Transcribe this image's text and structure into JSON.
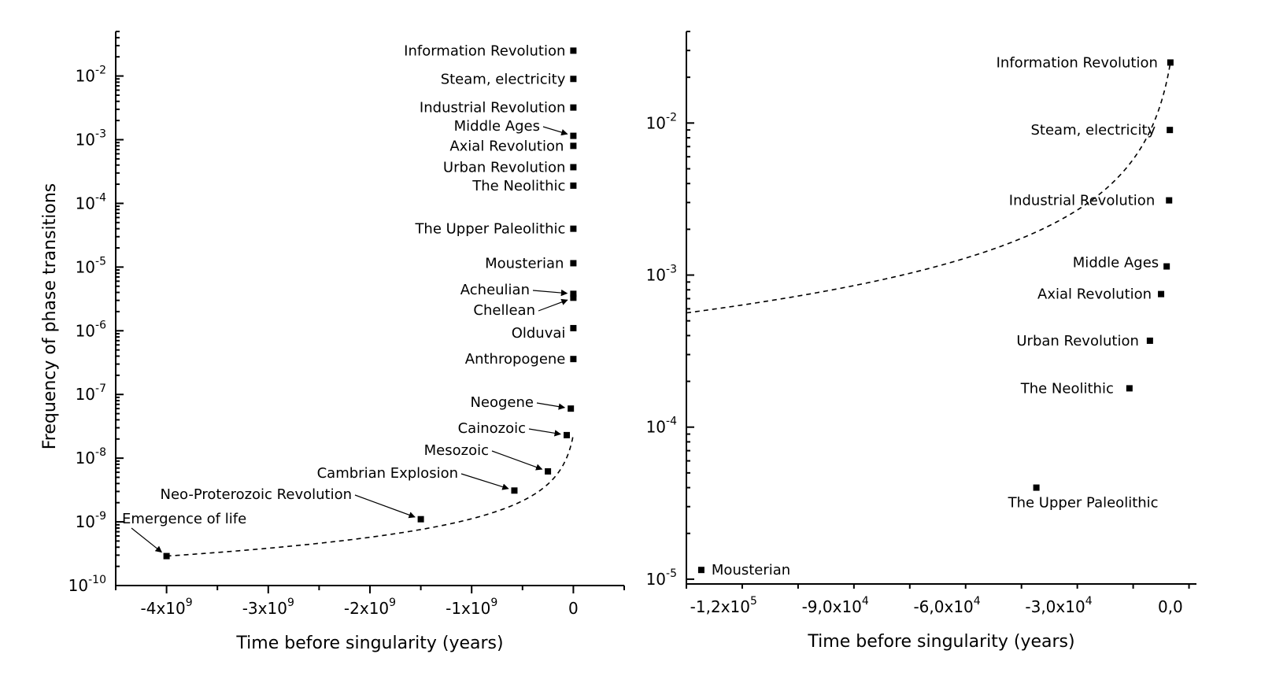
{
  "chart_data": [
    {
      "type": "scatter",
      "xlabel": "Time before singularity (years)",
      "ylabel": "Frequency of phase transitions",
      "xlim": [
        -4500000000,
        500000000
      ],
      "ylim": [
        1e-10,
        0.05
      ],
      "yscale": "log",
      "xticks": [
        {
          "v": -4000000000,
          "label": "-4x10",
          "exp": "9"
        },
        {
          "v": -3000000000,
          "label": "-3x10",
          "exp": "9"
        },
        {
          "v": -2000000000,
          "label": "-2x10",
          "exp": "9"
        },
        {
          "v": -1000000000,
          "label": "-1x10",
          "exp": "9"
        },
        {
          "v": 0,
          "label": "0",
          "exp": ""
        }
      ],
      "yticks": [
        {
          "v": 1e-10,
          "label": "10",
          "exp": "-10"
        },
        {
          "v": 1e-09,
          "label": "10",
          "exp": "-9"
        },
        {
          "v": 1e-08,
          "label": "10",
          "exp": "-8"
        },
        {
          "v": 1e-07,
          "label": "10",
          "exp": "-7"
        },
        {
          "v": 1e-06,
          "label": "10",
          "exp": "-6"
        },
        {
          "v": 1e-05,
          "label": "10",
          "exp": "-5"
        },
        {
          "v": 0.0001,
          "label": "10",
          "exp": "-4"
        },
        {
          "v": 0.001,
          "label": "10",
          "exp": "-3"
        },
        {
          "v": 0.01,
          "label": "10",
          "exp": "-2"
        }
      ],
      "points": [
        {
          "name": "Information Revolution",
          "x": 0,
          "y": 0.025
        },
        {
          "name": "Steam, electricity",
          "x": 0,
          "y": 0.009
        },
        {
          "name": "Industrial Revolution",
          "x": 0,
          "y": 0.0032
        },
        {
          "name": "Middle Ages",
          "x": 0,
          "y": 0.00115
        },
        {
          "name": "Axial Revolution",
          "x": 0,
          "y": 0.0008
        },
        {
          "name": "Urban Revolution",
          "x": 0,
          "y": 0.00037
        },
        {
          "name": "The Neolithic",
          "x": 0,
          "y": 0.00019
        },
        {
          "name": "The Upper Paleolithic",
          "x": 0,
          "y": 4e-05
        },
        {
          "name": "Mousterian",
          "x": 0,
          "y": 1.15e-05
        },
        {
          "name": "Acheulian",
          "x": 0,
          "y": 3.8e-06
        },
        {
          "name": "Chellean",
          "x": 0,
          "y": 3.3e-06
        },
        {
          "name": "Olduvai",
          "x": 0,
          "y": 1.1e-06
        },
        {
          "name": "Anthropogene",
          "x": 0,
          "y": 3.6e-07
        },
        {
          "name": "Neogene",
          "x": -25000000,
          "y": 6e-08
        },
        {
          "name": "Cainozoic",
          "x": -65000000,
          "y": 2.3e-08
        },
        {
          "name": "Mesozoic",
          "x": -250000000,
          "y": 6.2e-09
        },
        {
          "name": "Cambrian Explosion",
          "x": -580000000,
          "y": 3.1e-09
        },
        {
          "name": "Neo-Proterozoic Revolution",
          "x": -1500000000,
          "y": 1.1e-09
        },
        {
          "name": "Emergence of life",
          "x": -4000000000,
          "y": 2.9e-10
        }
      ],
      "fit_curve": "dashed hyperbolic trend"
    },
    {
      "type": "scatter",
      "xlabel": "Time before singularity (years)",
      "ylabel": "",
      "xlim": [
        -130000,
        7000
      ],
      "ylim": [
        9.3e-06,
        0.04
      ],
      "yscale": "log",
      "xticks": [
        {
          "v": -120000,
          "label": "-1,2x10",
          "exp": "5"
        },
        {
          "v": -90000,
          "label": "-9,0x10",
          "exp": "4"
        },
        {
          "v": -60000,
          "label": "-6,0x10",
          "exp": "4"
        },
        {
          "v": -30000,
          "label": "-3,0x10",
          "exp": "4"
        },
        {
          "v": 0,
          "label": "0,0",
          "exp": ""
        }
      ],
      "yticks": [
        {
          "v": 1e-05,
          "label": "10",
          "exp": "-5"
        },
        {
          "v": 0.0001,
          "label": "10",
          "exp": "-4"
        },
        {
          "v": 0.001,
          "label": "10",
          "exp": "-3"
        },
        {
          "v": 0.01,
          "label": "10",
          "exp": "-2"
        }
      ],
      "points": [
        {
          "name": "Information Revolution",
          "x": 0,
          "y": 0.025
        },
        {
          "name": "Steam, electricity",
          "x": -150,
          "y": 0.009
        },
        {
          "name": "Industrial Revolution",
          "x": -350,
          "y": 0.0031
        },
        {
          "name": "Middle Ages",
          "x": -1000,
          "y": 0.00114
        },
        {
          "name": "Axial Revolution",
          "x": -2500,
          "y": 0.00075
        },
        {
          "name": "Urban Revolution",
          "x": -5500,
          "y": 0.00037
        },
        {
          "name": "The Neolithic",
          "x": -11000,
          "y": 0.00018
        },
        {
          "name": "The Upper Paleolithic",
          "x": -36000,
          "y": 4e-05
        },
        {
          "name": "Mousterian",
          "x": -126000,
          "y": 1.15e-05
        }
      ],
      "fit_curve": "dashed hyperbolic trend"
    }
  ]
}
